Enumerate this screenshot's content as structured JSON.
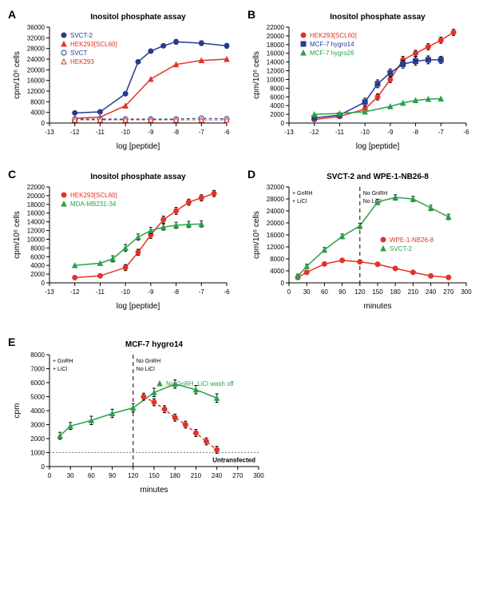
{
  "figure_width": 600,
  "figure_height": 741,
  "font_family": "Arial",
  "colors": {
    "blue": "#263b91",
    "red": "#e03428",
    "green": "#2aa148",
    "axis": "#000000",
    "grid_text": "#000000",
    "untrans_line": "#808080"
  },
  "panels": {
    "A": {
      "label": "A",
      "label_fontsize": 10,
      "title": "Inositol phosphate assay",
      "xlabel": "log [peptide]",
      "ylabel": "cpm/10⁶ cells",
      "xlim": [
        -13,
        -6
      ],
      "ylim": [
        0,
        36000
      ],
      "xtick_step": 1,
      "ytick_step": 4000,
      "title_fontsize": 10,
      "tick_fontsize": 8,
      "legend_fontsize": 8,
      "series": [
        {
          "name": "SVCT-2",
          "color": "#263b91",
          "marker": "circle",
          "marker_fill": "#263b91",
          "line_dash": "",
          "line_width": 1.5,
          "x": [
            -12,
            -11,
            -10,
            -9.5,
            -9,
            -8.5,
            -8,
            -7,
            -6
          ],
          "y": [
            3800,
            4200,
            11000,
            23000,
            27000,
            29000,
            30500,
            30000,
            29000
          ],
          "err": [
            0,
            0,
            0,
            0,
            0,
            0,
            900,
            900,
            900
          ]
        },
        {
          "name": "HEK293[SCL60]",
          "color": "#e03428",
          "marker": "triangle",
          "marker_fill": "#e03428",
          "line_dash": "",
          "line_width": 1.5,
          "x": [
            -12,
            -11,
            -10,
            -9,
            -8,
            -7,
            -6
          ],
          "y": [
            1800,
            2200,
            6500,
            16500,
            22000,
            23500,
            24000
          ],
          "err": [
            0,
            0,
            0,
            0,
            0,
            0,
            0
          ]
        },
        {
          "name": "SVCT",
          "color": "#263b91",
          "marker": "circle",
          "marker_fill": "#ffffff",
          "line_dash": "4 3",
          "line_width": 1,
          "x": [
            -12,
            -11,
            -10,
            -9,
            -8,
            -7,
            -6
          ],
          "y": [
            1500,
            1500,
            1500,
            1500,
            1500,
            1800,
            1600
          ],
          "err": [
            0,
            0,
            0,
            0,
            0,
            0,
            0
          ]
        },
        {
          "name": "HEK293",
          "color": "#e03428",
          "marker": "triangle",
          "marker_fill": "#ffffff",
          "line_dash": "4 3",
          "line_width": 1,
          "x": [
            -12,
            -11,
            -10,
            -9,
            -8,
            -7,
            -6
          ],
          "y": [
            1200,
            1200,
            1200,
            1200,
            1200,
            1200,
            1200
          ],
          "err": [
            0,
            0,
            0,
            0,
            0,
            0,
            0
          ]
        }
      ]
    },
    "B": {
      "label": "B",
      "label_fontsize": 10,
      "title": "Inositol phosphate assay",
      "xlabel": "log [peptide]",
      "ylabel": "cpm/10⁶ cells",
      "xlim": [
        -13,
        -6
      ],
      "ylim": [
        0,
        22000
      ],
      "xtick_step": 1,
      "ytick_step": 2000,
      "title_fontsize": 10,
      "tick_fontsize": 8,
      "legend_fontsize": 8,
      "series": [
        {
          "name": "HEK293[SCL60]",
          "color": "#e03428",
          "marker": "circle",
          "marker_fill": "#e03428",
          "line_dash": "",
          "line_width": 1.5,
          "x": [
            -12,
            -11,
            -10,
            -9.5,
            -9,
            -8.5,
            -8,
            -7.5,
            -7,
            -6.5
          ],
          "y": [
            800,
            1500,
            3200,
            6000,
            10000,
            14500,
            16000,
            17500,
            19000,
            20800
          ],
          "err": [
            0,
            0,
            700,
            700,
            700,
            800,
            700,
            700,
            700,
            700
          ]
        },
        {
          "name": "MCF-7 hygro14",
          "color": "#263b91",
          "marker": "square",
          "marker_fill": "#263b91",
          "line_dash": "",
          "line_width": 1.5,
          "x": [
            -12,
            -11,
            -10,
            -9.5,
            -9,
            -8.5,
            -8,
            -7.5,
            -7
          ],
          "y": [
            1200,
            1800,
            4800,
            9000,
            11500,
            13500,
            14200,
            14500,
            14500
          ],
          "err": [
            0,
            0,
            900,
            900,
            900,
            900,
            900,
            900,
            800
          ]
        },
        {
          "name": "MCF-7 hygro26",
          "color": "#2aa148",
          "marker": "triangle",
          "marker_fill": "#2aa148",
          "line_dash": "",
          "line_width": 1.5,
          "x": [
            -12,
            -11,
            -10,
            -9,
            -8.5,
            -8,
            -7.5,
            -7
          ],
          "y": [
            2000,
            2200,
            2600,
            3800,
            4600,
            5200,
            5500,
            5600
          ],
          "err": [
            0,
            0,
            0,
            0,
            0,
            0,
            0,
            0
          ]
        }
      ]
    },
    "C": {
      "label": "C",
      "label_fontsize": 10,
      "title": "Inositol phosphate assay",
      "xlabel": "log [peptide]",
      "ylabel": "cpm/10⁶ cells",
      "xlim": [
        -13,
        -6
      ],
      "ylim": [
        0,
        22000
      ],
      "xtick_step": 1,
      "ytick_step": 2000,
      "title_fontsize": 10,
      "tick_fontsize": 8,
      "legend_fontsize": 8,
      "series": [
        {
          "name": "HEK293[SCL60]",
          "color": "#e03428",
          "marker": "circle",
          "marker_fill": "#e03428",
          "line_dash": "",
          "line_width": 1.5,
          "x": [
            -12,
            -11,
            -10,
            -9.5,
            -9,
            -8.5,
            -8,
            -7.5,
            -7,
            -6.5
          ],
          "y": [
            1200,
            1600,
            3500,
            7000,
            11000,
            14500,
            16500,
            18500,
            19500,
            20500
          ],
          "err": [
            0,
            0,
            700,
            700,
            800,
            800,
            800,
            700,
            700,
            700
          ]
        },
        {
          "name": "MDA-MB231-34",
          "color": "#2aa148",
          "marker": "triangle",
          "marker_fill": "#2aa148",
          "line_dash": "",
          "line_width": 1.5,
          "x": [
            -12,
            -11,
            -10.5,
            -10,
            -9.5,
            -9,
            -8.5,
            -8,
            -7.5,
            -7
          ],
          "y": [
            4000,
            4500,
            5500,
            8000,
            10500,
            12000,
            12800,
            13200,
            13400,
            13500
          ],
          "err": [
            0,
            0,
            700,
            800,
            700,
            700,
            700,
            700,
            700,
            700
          ]
        }
      ]
    },
    "D": {
      "label": "D",
      "label_fontsize": 10,
      "title": "SVCT-2 and WPE-1-NB26-8",
      "xlabel": "minutes",
      "ylabel": "cpm/10⁶ cells",
      "xlim": [
        0,
        300
      ],
      "ylim": [
        0,
        32000
      ],
      "xticks": [
        0,
        30,
        60,
        90,
        120,
        150,
        180,
        210,
        240,
        270,
        300
      ],
      "ytick_step": 4000,
      "title_fontsize": 10,
      "tick_fontsize": 8,
      "legend_fontsize": 8,
      "vline_x": 120,
      "annot_left": [
        "+ GnRH",
        "+ LiCl"
      ],
      "annot_right": [
        "No GnRH",
        "No LiCl"
      ],
      "series": [
        {
          "name": "WPE-1-NB26-8",
          "color": "#e03428",
          "marker": "circle",
          "marker_fill": "#e03428",
          "line_dash": "",
          "line_width": 1.5,
          "x": [
            15,
            30,
            60,
            90,
            120,
            150,
            180,
            210,
            240,
            270
          ],
          "y": [
            1800,
            3500,
            6300,
            7500,
            7000,
            6200,
            4800,
            3500,
            2300,
            1800
          ],
          "err": [
            500,
            500,
            500,
            500,
            500,
            500,
            500,
            500,
            500,
            500
          ]
        },
        {
          "name": "SVCT-2",
          "color": "#2aa148",
          "marker": "triangle",
          "marker_fill": "#2aa148",
          "line_dash": "",
          "line_width": 1.5,
          "x": [
            15,
            30,
            60,
            90,
            120,
            150,
            180,
            210,
            240,
            270
          ],
          "y": [
            2200,
            5500,
            11000,
            15500,
            19000,
            27000,
            28500,
            28000,
            25000,
            22000
          ],
          "err": [
            700,
            700,
            800,
            800,
            900,
            900,
            900,
            900,
            900,
            900
          ]
        }
      ]
    },
    "E": {
      "label": "E",
      "label_fontsize": 10,
      "title": "MCF-7 hygro14",
      "xlabel": "minutes",
      "ylabel": "cpm",
      "xlim": [
        0,
        300
      ],
      "ylim": [
        0,
        8000
      ],
      "xticks": [
        0,
        30,
        60,
        90,
        120,
        150,
        180,
        210,
        240,
        270,
        300
      ],
      "ytick_step": 1000,
      "title_fontsize": 10,
      "tick_fontsize": 8,
      "legend_fontsize": 8,
      "vline_x": 120,
      "annot_left": [
        "+ GnRH",
        "+ LiCl"
      ],
      "annot_right": [
        "No GnRH",
        "No LiCl"
      ],
      "untransfected_y": 1000,
      "untransfected_label": "Untransfected",
      "series": [
        {
          "name": "No GnRH, LiCl wash off",
          "color": "#2aa148",
          "marker": "triangle",
          "marker_fill": "#2aa148",
          "line_dash": "",
          "line_width": 1.5,
          "is_legend_only": false,
          "x": [
            15,
            30,
            60,
            90,
            120,
            150,
            180,
            210,
            240
          ],
          "y": [
            2200,
            2900,
            3300,
            3800,
            4200,
            5300,
            5900,
            5500,
            4900
          ],
          "err": [
            250,
            250,
            300,
            300,
            300,
            300,
            300,
            300,
            300
          ]
        },
        {
          "name": "",
          "color": "#e03428",
          "marker": "circle",
          "marker_fill": "#e03428",
          "line_dash": "4 3",
          "line_width": 1.5,
          "is_legend_only": false,
          "x": [
            135,
            150,
            165,
            180,
            195,
            210,
            225,
            240
          ],
          "y": [
            5000,
            4600,
            4100,
            3500,
            3000,
            2400,
            1800,
            1200
          ],
          "err": [
            250,
            250,
            250,
            250,
            250,
            250,
            250,
            250
          ]
        }
      ]
    }
  }
}
